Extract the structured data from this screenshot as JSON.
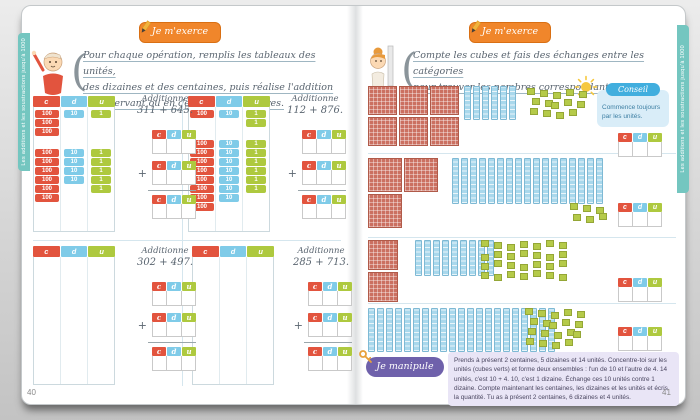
{
  "book": {
    "side_tab_label": "Les additions et les soustractions jusqu'à 1000"
  },
  "symbols": {
    "plus": "+"
  },
  "cdu_headers": [
    "c",
    "d",
    "u"
  ],
  "tile_labels": {
    "c": "100",
    "d": "10",
    "u": "1"
  },
  "colors": {
    "hundreds": "#e2543e",
    "tens": "#7fcbe8",
    "units": "#aec93f",
    "banner_orange": "#f0862b",
    "conseil_blue": "#41aede",
    "manipule_purple": "#6f61ab",
    "tab_teal": "#74c6c0"
  },
  "left_page": {
    "page_number": "40",
    "banner_label": "Je m'exerce",
    "instruction_lines": [
      "Pour chaque opération, remplis les tableaux des unités,",
      "des dizaines et des centaines, puis réalise l'addition",
      "en observant ou en dessinant les timbres."
    ],
    "exercise_label": "Additionne",
    "exercises": [
      {
        "operation": "311 + 645.",
        "groups": [
          {
            "c": 3,
            "d": 1,
            "u": 1
          },
          {
            "c": 6,
            "d": 4,
            "u": 5
          }
        ]
      },
      {
        "operation": "112 + 876.",
        "groups": [
          {
            "c": 1,
            "d": 1,
            "u": 2
          },
          {
            "c": 8,
            "d": 7,
            "u": 6
          }
        ]
      },
      {
        "operation": "302 + 497.",
        "groups": []
      },
      {
        "operation": "285 + 713.",
        "groups": []
      }
    ]
  },
  "right_page": {
    "page_number": "41",
    "banner_label": "Je m'exerce",
    "instruction_lines": [
      "Compte les cubes et fais des échanges entre les catégories",
      "pour trouver les nombres correspondants."
    ],
    "conseil": {
      "title": "Conseil",
      "text": "Commence toujours par les unités."
    },
    "block_rows": [
      {
        "hundreds_flats": 6,
        "tens_rods": 6,
        "unit_cubes": 14
      },
      {
        "hundreds_flats": 3,
        "tens_rods": 17,
        "unit_cubes": 6
      },
      {
        "hundreds_flats": 2,
        "tens_rods": 9,
        "unit_cubes": 28
      },
      {
        "hundreds_flats": 0,
        "tens_rods": 21,
        "unit_cubes": 19
      }
    ],
    "manipule": {
      "label": "Je manipule",
      "text": "Prends à présent 2 centaines, 5 dizaines et 14 unités. Concentre-toi sur les unités (cubes verts) et forme deux ensembles : l'un de 10 et l'autre de 4. 14 unités, c'est 10 + 4. 10, c'est 1 dizaine. Échange ces 10 unités contre 1 dizaine. Compte maintenant les centaines, les dizaines et les unités et écris la quantité. Tu as à présent 2 centaines, 6 dizaines et 4 unités."
    }
  }
}
